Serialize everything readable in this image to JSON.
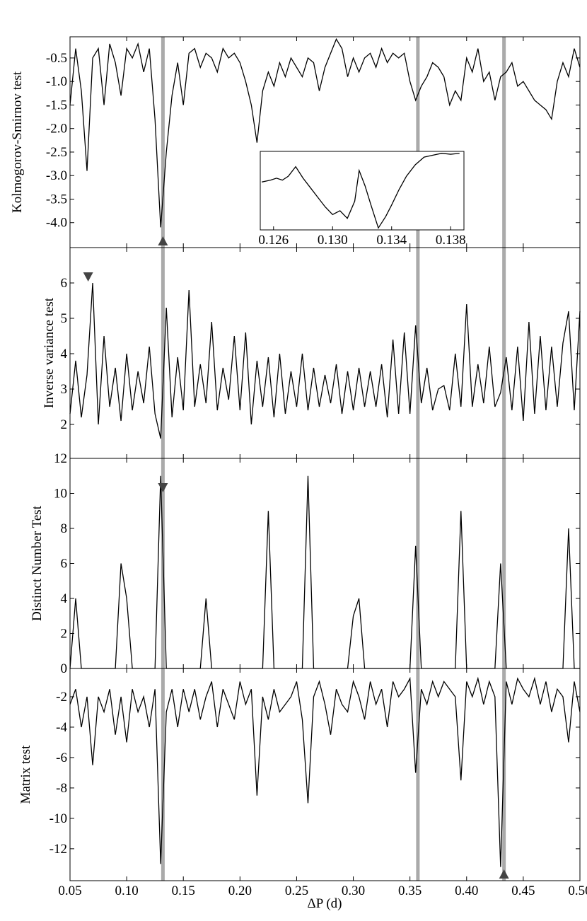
{
  "chart_data": {
    "type": "line",
    "xlabel": "ΔP (d)",
    "x": [
      0.05,
      0.055,
      0.06,
      0.065,
      0.07,
      0.075,
      0.08,
      0.085,
      0.09,
      0.095,
      0.1,
      0.105,
      0.11,
      0.115,
      0.12,
      0.125,
      0.13,
      0.135,
      0.14,
      0.145,
      0.15,
      0.155,
      0.16,
      0.165,
      0.17,
      0.175,
      0.18,
      0.185,
      0.19,
      0.195,
      0.2,
      0.205,
      0.21,
      0.215,
      0.22,
      0.225,
      0.23,
      0.235,
      0.24,
      0.245,
      0.25,
      0.255,
      0.26,
      0.265,
      0.27,
      0.275,
      0.28,
      0.285,
      0.29,
      0.295,
      0.3,
      0.305,
      0.31,
      0.315,
      0.32,
      0.325,
      0.33,
      0.335,
      0.34,
      0.345,
      0.35,
      0.355,
      0.36,
      0.365,
      0.37,
      0.375,
      0.38,
      0.385,
      0.39,
      0.395,
      0.4,
      0.405,
      0.41,
      0.415,
      0.42,
      0.425,
      0.43,
      0.435,
      0.44,
      0.445,
      0.45,
      0.455,
      0.46,
      0.465,
      0.47,
      0.475,
      0.48,
      0.485,
      0.49,
      0.495,
      0.5
    ],
    "xlim": [
      0.05,
      0.5
    ],
    "xticks": [
      0.05,
      {
        "value": 0.1,
        "label": "0.10"
      },
      0.15,
      {
        "value": 0.2,
        "label": "0.20"
      },
      0.25,
      {
        "value": 0.3,
        "label": "0.30"
      },
      0.35,
      {
        "value": 0.4,
        "label": "0.40"
      },
      0.45,
      {
        "value": 0.5,
        "label": "0.50"
      }
    ],
    "highlight_x": [
      0.132,
      0.357,
      0.433
    ],
    "highlight_color": "#aaaaaa",
    "color": "#000000",
    "panels": [
      {
        "ylabel": "Kolmogorov-Smirnov test",
        "ylim": [
          -4.53,
          -0.05
        ],
        "yticks": [
          -0.5,
          {
            "value": -1,
            "label": "-1.0"
          },
          -1.5,
          {
            "value": -2,
            "label": "-2.0"
          },
          -2.5,
          {
            "value": -3,
            "label": "-3.0"
          },
          -3.5,
          {
            "value": -4,
            "label": "-4.0"
          }
        ],
        "marker": {
          "x": 0.132,
          "direction": "up"
        },
        "values": [
          -1.5,
          -0.3,
          -1.2,
          -2.9,
          -0.5,
          -0.3,
          -1.5,
          -0.2,
          -0.6,
          -1.3,
          -0.3,
          -0.5,
          -0.2,
          -0.8,
          -0.3,
          -1.8,
          -4.1,
          -2.5,
          -1.3,
          -0.6,
          -1.5,
          -0.4,
          -0.3,
          -0.7,
          -0.4,
          -0.5,
          -0.8,
          -0.3,
          -0.5,
          -0.4,
          -0.6,
          -1.0,
          -1.5,
          -2.3,
          -1.2,
          -0.8,
          -1.1,
          -0.6,
          -0.9,
          -0.5,
          -0.7,
          -0.9,
          -0.5,
          -0.6,
          -1.2,
          -0.7,
          -0.4,
          -0.1,
          -0.3,
          -0.9,
          -0.5,
          -0.8,
          -0.5,
          -0.4,
          -0.7,
          -0.3,
          -0.6,
          -0.4,
          -0.5,
          -0.4,
          -1.0,
          -1.4,
          -1.1,
          -0.9,
          -0.6,
          -0.7,
          -0.9,
          -1.5,
          -1.2,
          -1.4,
          -0.5,
          -0.8,
          -0.3,
          -1.0,
          -0.8,
          -1.4,
          -0.9,
          -0.8,
          -0.6,
          -1.1,
          -1.0,
          -1.2,
          -1.4,
          -1.5,
          -1.6,
          -1.8,
          -1.0,
          -0.6,
          -0.9,
          -0.3,
          -0.7
        ]
      },
      {
        "ylabel": "Inverse variance test",
        "ylim": [
          1.04,
          7.0
        ],
        "yticks": [
          2,
          3,
          4,
          5,
          6
        ],
        "marker": {
          "x": 0.066,
          "direction": "down"
        },
        "values": [
          2.3,
          3.8,
          2.2,
          3.4,
          6.0,
          2.0,
          4.5,
          2.5,
          3.6,
          2.1,
          4.0,
          2.4,
          3.5,
          2.6,
          4.2,
          2.3,
          1.6,
          5.3,
          2.2,
          3.9,
          2.4,
          5.8,
          2.5,
          3.7,
          2.6,
          4.9,
          2.4,
          3.6,
          2.7,
          4.5,
          2.4,
          4.6,
          2.0,
          3.8,
          2.5,
          3.9,
          2.2,
          4.0,
          2.3,
          3.5,
          2.5,
          4.0,
          2.4,
          3.6,
          2.5,
          3.4,
          2.6,
          3.7,
          2.3,
          3.5,
          2.4,
          3.6,
          2.5,
          3.5,
          2.5,
          3.7,
          2.2,
          4.4,
          2.3,
          4.6,
          2.3,
          4.8,
          2.6,
          3.6,
          2.4,
          3.0,
          3.1,
          2.4,
          4.0,
          2.5,
          5.4,
          2.5,
          3.7,
          2.6,
          4.2,
          2.5,
          2.9,
          3.9,
          2.4,
          4.2,
          2.1,
          4.9,
          2.3,
          4.5,
          2.4,
          4.2,
          2.5,
          4.3,
          5.2,
          2.4,
          5.2
        ]
      },
      {
        "ylabel": "Distinct Number Test",
        "ylim": [
          0,
          12
        ],
        "yticks": [
          0,
          2,
          4,
          6,
          8,
          10,
          12
        ],
        "marker": {
          "x": 0.132,
          "direction": "down"
        },
        "values": [
          0,
          4,
          0,
          0,
          0,
          0,
          0,
          0,
          0,
          6,
          4,
          0,
          0,
          0,
          0,
          0,
          11,
          0,
          0,
          0,
          0,
          0,
          0,
          0,
          4,
          0,
          0,
          0,
          0,
          0,
          0,
          0,
          0,
          0,
          0,
          9,
          0,
          0,
          0,
          0,
          0,
          0,
          11,
          0,
          0,
          0,
          0,
          0,
          0,
          0,
          3,
          4,
          0,
          0,
          0,
          0,
          0,
          0,
          0,
          0,
          0,
          7,
          0,
          0,
          0,
          0,
          0,
          0,
          0,
          9,
          0,
          0,
          0,
          0,
          0,
          0,
          6,
          0,
          0,
          0,
          0,
          0,
          0,
          0,
          0,
          0,
          0,
          0,
          8,
          0,
          0
        ]
      },
      {
        "ylabel": "Matrix test",
        "ylim": [
          -14.1,
          -0.14
        ],
        "yticks": [
          -2,
          -4,
          -6,
          -8,
          -10,
          -12
        ],
        "marker": {
          "x": 0.433,
          "direction": "up"
        },
        "values": [
          -2.5,
          -1.5,
          -4.0,
          -2.0,
          -6.5,
          -2.0,
          -3.0,
          -1.5,
          -4.5,
          -2.0,
          -5.0,
          -1.5,
          -3.0,
          -2.0,
          -4.0,
          -1.5,
          -13.0,
          -3.0,
          -1.5,
          -4.0,
          -1.5,
          -3.0,
          -1.5,
          -3.5,
          -2.0,
          -1.0,
          -4.0,
          -1.5,
          -2.5,
          -3.5,
          -1.0,
          -2.5,
          -1.5,
          -8.5,
          -2.0,
          -3.5,
          -1.5,
          -3.0,
          -2.5,
          -2.0,
          -1.0,
          -3.5,
          -9.0,
          -2.0,
          -1.0,
          -2.5,
          -4.5,
          -1.5,
          -2.5,
          -3.0,
          -1.0,
          -2.0,
          -3.5,
          -1.0,
          -2.5,
          -1.5,
          -4.0,
          -1.0,
          -2.0,
          -1.5,
          -0.8,
          -7.0,
          -1.5,
          -2.5,
          -1.0,
          -2.0,
          -1.0,
          -1.5,
          -2.0,
          -7.5,
          -1.0,
          -2.0,
          -0.8,
          -2.5,
          -1.0,
          -2.0,
          -13.2,
          -1.0,
          -2.5,
          -0.8,
          -1.5,
          -2.0,
          -0.8,
          -2.5,
          -1.0,
          -3.0,
          -1.5,
          -2.0,
          -5.0,
          -1.0,
          -3.0
        ]
      }
    ],
    "inset": {
      "x": [
        0.1252,
        0.1258,
        0.1262,
        0.1266,
        0.127,
        0.1275,
        0.128,
        0.1285,
        0.129,
        0.1295,
        0.13,
        0.1305,
        0.131,
        0.1315,
        0.1318,
        0.1322,
        0.1326,
        0.1331,
        0.1336,
        0.134,
        0.1345,
        0.135,
        0.1356,
        0.1362,
        0.1368,
        0.1374,
        0.138,
        0.1386
      ],
      "values": [
        -1.8,
        -1.7,
        -1.6,
        -1.7,
        -1.5,
        -1.0,
        -1.6,
        -2.1,
        -2.6,
        -3.1,
        -3.5,
        -3.3,
        -3.7,
        -2.8,
        -1.2,
        -2.0,
        -3.0,
        -4.2,
        -3.6,
        -3.0,
        -2.2,
        -1.5,
        -0.9,
        -0.5,
        -0.4,
        -0.3,
        -0.35,
        -0.3
      ],
      "xlim": [
        0.1251,
        0.1389
      ],
      "ylim": [
        -4.3,
        -0.2
      ],
      "xticks": [
        0.126,
        {
          "value": 0.13,
          "label": "0.130"
        },
        0.134,
        0.138
      ]
    }
  }
}
